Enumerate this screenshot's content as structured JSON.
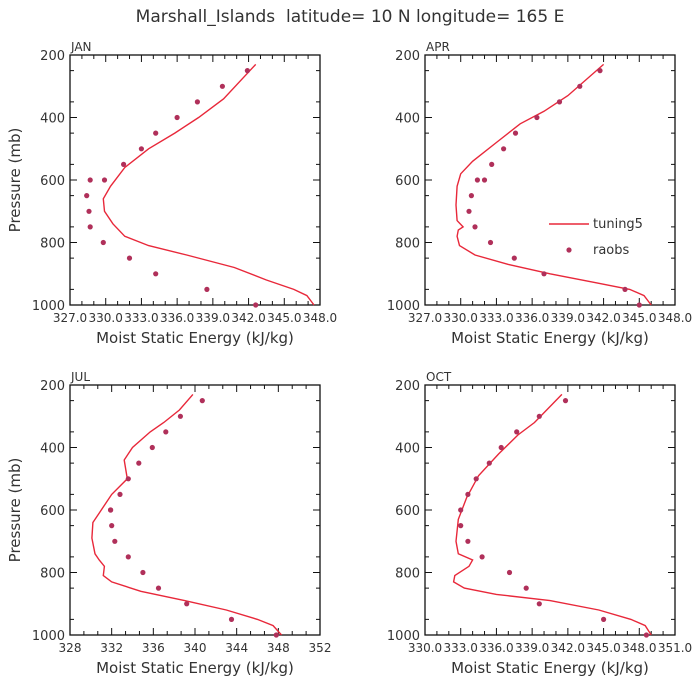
{
  "figure": {
    "title": "Marshall_Islands  latitude= 10 N longitude= 165 E"
  },
  "legend": {
    "model_label": "tuning5",
    "obs_label": "raobs",
    "panel_index": 1
  },
  "style": {
    "line_color": "#e8283a",
    "dot_color": "#b0305a",
    "axis_color": "#111111"
  },
  "chart_data": [
    {
      "type": "line",
      "panel_label": "JAN",
      "xlabel": "Moist Static Energy (kJ/kg)",
      "ylabel": "Pressure (mb)",
      "xlim": [
        327.0,
        348.0
      ],
      "ylim": [
        1000,
        200
      ],
      "xticks": [
        327.0,
        330.0,
        333.0,
        336.0,
        339.0,
        342.0,
        345.0,
        348.0
      ],
      "xtick_labels": [
        "327.0",
        "330.0",
        "333.0",
        "336.0",
        "339.0",
        "342.0",
        "345.0",
        "348.0"
      ],
      "yticks": [
        200,
        400,
        600,
        800,
        1000
      ],
      "ytick_labels": [
        "200",
        "400",
        "600",
        "800",
        "1000"
      ],
      "show_ylabel": true,
      "series": [
        {
          "name": "tuning5",
          "kind": "line",
          "x": [
            347.5,
            346.9,
            345.8,
            343.5,
            340.8,
            336.8,
            333.6,
            331.6,
            330.6,
            329.9,
            329.8,
            330.4,
            331.6,
            333.6,
            335.8,
            337.8,
            339.9,
            342.6
          ],
          "y": [
            1000,
            970,
            950,
            920,
            880,
            840,
            810,
            780,
            740,
            700,
            660,
            620,
            560,
            500,
            450,
            400,
            340,
            230
          ]
        },
        {
          "name": "raobs",
          "kind": "scatter",
          "x": [
            342.6,
            338.5,
            334.2,
            332.0,
            329.8,
            328.7,
            328.6,
            328.4,
            328.7,
            329.9,
            331.5,
            333.0,
            334.2,
            336.0,
            337.7,
            339.8,
            341.9
          ],
          "y": [
            1000,
            950,
            900,
            850,
            800,
            750,
            700,
            650,
            600,
            600,
            550,
            500,
            450,
            400,
            350,
            300,
            250
          ]
        }
      ]
    },
    {
      "type": "line",
      "panel_label": "APR",
      "xlabel": "Moist Static Energy (kJ/kg)",
      "ylabel": "",
      "xlim": [
        327.0,
        348.0
      ],
      "ylim": [
        1000,
        200
      ],
      "xticks": [
        327.0,
        330.0,
        333.0,
        336.0,
        339.0,
        342.0,
        345.0,
        348.0
      ],
      "xtick_labels": [
        "327.0",
        "330.0",
        "333.0",
        "336.0",
        "339.0",
        "342.0",
        "345.0",
        "348.0"
      ],
      "yticks": [
        200,
        400,
        600,
        800,
        1000
      ],
      "ytick_labels": [
        "200",
        "400",
        "600",
        "800",
        "1000"
      ],
      "show_ylabel": false,
      "series": [
        {
          "name": "tuning5",
          "kind": "line",
          "x": [
            346.0,
            345.4,
            344.2,
            341.5,
            337.5,
            334.0,
            331.2,
            329.9,
            329.7,
            329.8,
            330.2,
            329.7,
            329.6,
            329.7,
            330.0,
            331.0,
            333.0,
            335.0,
            337.0,
            339.0,
            342.0
          ],
          "y": [
            1000,
            970,
            950,
            930,
            900,
            870,
            840,
            810,
            780,
            760,
            750,
            730,
            680,
            620,
            580,
            540,
            480,
            420,
            380,
            330,
            230
          ]
        },
        {
          "name": "raobs",
          "kind": "scatter",
          "x": [
            345.0,
            343.8,
            337.0,
            334.5,
            332.5,
            331.2,
            330.7,
            330.9,
            331.4,
            332.0,
            332.6,
            333.6,
            334.6,
            336.4,
            338.3,
            340.0,
            341.7
          ],
          "y": [
            1000,
            950,
            900,
            850,
            800,
            750,
            700,
            650,
            600,
            600,
            550,
            500,
            450,
            400,
            350,
            300,
            250
          ]
        }
      ]
    },
    {
      "type": "line",
      "panel_label": "JUL",
      "xlabel": "Moist Static Energy (kJ/kg)",
      "ylabel": "Pressure (mb)",
      "xlim": [
        328,
        352
      ],
      "ylim": [
        1000,
        200
      ],
      "xticks": [
        328,
        332,
        336,
        340,
        344,
        348,
        352
      ],
      "xtick_labels": [
        "328",
        "332",
        "336",
        "340",
        "344",
        "348",
        "352"
      ],
      "show_ylabel": true,
      "yticks": [
        200,
        400,
        600,
        800,
        1000
      ],
      "ytick_labels": [
        "200",
        "400",
        "600",
        "800",
        "1000"
      ],
      "series": [
        {
          "name": "tuning5",
          "kind": "line",
          "x": [
            348.3,
            347.5,
            346.0,
            343.0,
            339.0,
            334.8,
            332.0,
            331.2,
            331.3,
            330.8,
            330.4,
            330.1,
            330.2,
            330.8,
            332.0,
            333.5,
            333.2,
            334.0,
            335.7,
            337.0,
            338.5,
            339.8
          ],
          "y": [
            1000,
            970,
            950,
            920,
            890,
            860,
            830,
            810,
            780,
            760,
            740,
            690,
            640,
            610,
            550,
            500,
            440,
            400,
            350,
            320,
            280,
            230
          ]
        },
        {
          "name": "raobs",
          "kind": "scatter",
          "x": [
            347.8,
            343.5,
            339.2,
            336.5,
            335.0,
            333.6,
            332.3,
            332.0,
            331.9,
            331.9,
            332.8,
            333.6,
            334.6,
            335.9,
            337.2,
            338.6,
            340.7
          ],
          "y": [
            1000,
            950,
            900,
            850,
            800,
            750,
            700,
            650,
            600,
            600,
            550,
            500,
            450,
            400,
            350,
            300,
            250
          ]
        }
      ]
    },
    {
      "type": "line",
      "panel_label": "OCT",
      "xlabel": "Moist Static Energy (kJ/kg)",
      "ylabel": "",
      "xlim": [
        330.0,
        351.0
      ],
      "ylim": [
        1000,
        200
      ],
      "xticks": [
        330.0,
        333.0,
        336.0,
        339.0,
        342.0,
        345.0,
        348.0,
        351.0
      ],
      "xtick_labels": [
        "330.0",
        "333.0",
        "336.0",
        "339.0",
        "342.0",
        "345.0",
        "348.0",
        "351.0"
      ],
      "yticks": [
        200,
        400,
        600,
        800,
        1000
      ],
      "ytick_labels": [
        "200",
        "400",
        "600",
        "800",
        "1000"
      ],
      "show_ylabel": false,
      "series": [
        {
          "name": "tuning5",
          "kind": "line",
          "x": [
            349.0,
            348.5,
            347.3,
            344.6,
            340.5,
            336.0,
            333.3,
            332.4,
            332.5,
            333.7,
            334.0,
            332.8,
            332.6,
            332.8,
            333.5,
            334.5,
            336.2,
            337.8,
            339.2,
            341.5
          ],
          "y": [
            1000,
            970,
            950,
            920,
            890,
            870,
            850,
            830,
            810,
            780,
            760,
            740,
            700,
            630,
            560,
            490,
            420,
            360,
            320,
            230
          ]
        },
        {
          "name": "raobs",
          "kind": "scatter",
          "x": [
            348.6,
            345.0,
            339.6,
            338.5,
            337.1,
            334.8,
            333.6,
            333.0,
            333.0,
            333.6,
            334.3,
            335.4,
            336.4,
            337.7,
            339.6,
            341.8
          ],
          "y": [
            1000,
            950,
            900,
            850,
            800,
            750,
            700,
            650,
            600,
            550,
            500,
            450,
            400,
            350,
            300,
            250
          ]
        }
      ]
    }
  ]
}
